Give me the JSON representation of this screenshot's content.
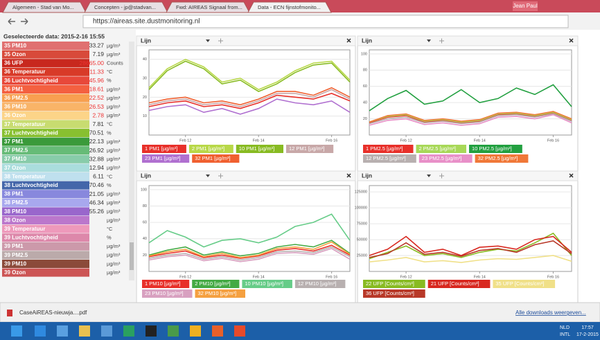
{
  "browser": {
    "tabs": [
      "Algemeen - Stad van Mo...",
      "Concepten - jp@stadvan...",
      "Fwd: AIREAS Signaal from...",
      "Data - ECN fijnstofmonito..."
    ],
    "user": "Jean Paul",
    "url": "https://aireas.site.dustmonitoring.nl"
  },
  "sidebar": {
    "header": "Geselecteerde data: 2015-2-16 15:55",
    "rows": [
      {
        "label": "35 PM10",
        "value": "33.27",
        "unit": "µg/m³",
        "color": "#e07070"
      },
      {
        "label": "35 Ozon",
        "value": "7.19",
        "unit": "µg/m³",
        "color": "#d84a3a"
      },
      {
        "label": "36 UFP",
        "value": "28665.00",
        "unit": "Counts",
        "color": "#c8281e"
      },
      {
        "label": "36 Temperatuur",
        "value": "11.33",
        "unit": "°C",
        "color": "#d83a28"
      },
      {
        "label": "36 Luchtvochtigheid",
        "value": "45.96",
        "unit": "%",
        "color": "#e8483a"
      },
      {
        "label": "36 PM1",
        "value": "18.61",
        "unit": "µg/m³",
        "color": "#f46040"
      },
      {
        "label": "36 PM2.5",
        "value": "22.52",
        "unit": "µg/m³",
        "color": "#f8a050"
      },
      {
        "label": "36 PM10",
        "value": "26.53",
        "unit": "µg/m³",
        "color": "#f9b468"
      },
      {
        "label": "36 Ozon",
        "value": "2.78",
        "unit": "µg/m³",
        "color": "#fcd488"
      },
      {
        "label": "37 Temperatuur",
        "value": "7.81",
        "unit": "°C",
        "color": "#c8dc70"
      },
      {
        "label": "37 Luchtvochtigheid",
        "value": "70.51",
        "unit": "%",
        "color": "#88c030"
      },
      {
        "label": "37 PM1",
        "value": "22.13",
        "unit": "µg/m³",
        "color": "#3a9a3a"
      },
      {
        "label": "37 PM2.5",
        "value": "26.92",
        "unit": "µg/m³",
        "color": "#66bb77"
      },
      {
        "label": "37 PM10",
        "value": "32.88",
        "unit": "µg/m³",
        "color": "#88ccaa"
      },
      {
        "label": "37 Ozon",
        "value": "12.94",
        "unit": "µg/m³",
        "color": "#aadddd"
      },
      {
        "label": "38 Temperatuur",
        "value": "6.11",
        "unit": "°C",
        "color": "#bfe0ee"
      },
      {
        "label": "38 Luchtvochtigheid",
        "value": "70.46",
        "unit": "%",
        "color": "#4466aa"
      },
      {
        "label": "38 PM1",
        "value": "21.05",
        "unit": "µg/m³",
        "color": "#8888dd"
      },
      {
        "label": "38 PM2.5",
        "value": "46.34",
        "unit": "µg/m³",
        "color": "#a8a8ee"
      },
      {
        "label": "38 PM10",
        "value": "55.26",
        "unit": "µg/m³",
        "color": "#9966cc"
      },
      {
        "label": "38 Ozon",
        "unit": "µg/m³",
        "color": "#bb77cc"
      },
      {
        "label": "39 Temperatuur",
        "unit": "°C",
        "color": "#ee99bb"
      },
      {
        "label": "39 Luchtvochtigheid",
        "unit": "%",
        "color": "#dd88aa"
      },
      {
        "label": "39 PM1",
        "unit": "µg/m³",
        "color": "#cc99aa"
      },
      {
        "label": "39 PM2.5",
        "unit": "µg/m³",
        "color": "#bbaaaa"
      },
      {
        "label": "39 PM10",
        "unit": "µg/m³",
        "color": "#8b4a3a"
      },
      {
        "label": "39 Ozon",
        "unit": "µg/m³",
        "color": "#cc5555"
      }
    ]
  },
  "panels": [
    {
      "header": "Lijn",
      "x": [
        0,
        1,
        2,
        3,
        4,
        5,
        6,
        7,
        8,
        9,
        10,
        11
      ],
      "xlim": [
        0,
        11
      ],
      "xticks": [
        {
          "value": 2,
          "label": "Feb 12"
        },
        {
          "value": 6,
          "label": "Feb 14"
        },
        {
          "value": 10,
          "label": "Feb 16"
        }
      ],
      "ylim": [
        0,
        45
      ],
      "yticks": [
        10,
        20,
        30,
        40
      ],
      "series": [
        {
          "name": "1 PM1 [µg/m³]",
          "color": "#e8302a",
          "values": [
            15,
            17,
            18,
            15,
            16,
            14,
            17,
            21,
            20,
            19,
            22,
            18
          ]
        },
        {
          "name": "2 PM1 [µg/m³]",
          "color": "#b8d848",
          "values": [
            25,
            35,
            40,
            36,
            28,
            30,
            24,
            28,
            34,
            38,
            39,
            29
          ]
        },
        {
          "name": "10 PM1 [µg/m³]",
          "color": "#88bb22",
          "values": [
            24,
            34,
            39,
            35,
            27,
            29,
            23,
            27,
            33,
            37,
            38,
            28
          ]
        },
        {
          "name": "12 PM1 [µg/m³]",
          "color": "#c8a8a8",
          "values": [
            16,
            18,
            19,
            16,
            17,
            15,
            18,
            22,
            22,
            20,
            24,
            19
          ]
        },
        {
          "name": "23 PM1 [µg/m³]",
          "color": "#b070d0",
          "values": [
            13,
            15,
            16,
            12,
            14,
            11,
            14,
            19,
            17,
            16,
            18,
            12
          ]
        },
        {
          "name": "32 PM1 [µg/m³]",
          "color": "#f06030",
          "values": [
            17,
            19,
            20,
            17,
            18,
            16,
            19,
            23,
            23,
            21,
            25,
            20
          ]
        }
      ]
    },
    {
      "header": "Lijn",
      "x": [
        0,
        1,
        2,
        3,
        4,
        5,
        6,
        7,
        8,
        9,
        10,
        11
      ],
      "xlim": [
        0,
        11
      ],
      "xticks": [
        {
          "value": 2,
          "label": "Feb 12"
        },
        {
          "value": 6,
          "label": "Feb 14"
        },
        {
          "value": 10,
          "label": "Feb 16"
        }
      ],
      "ylim": [
        0,
        105
      ],
      "yticks": [
        20,
        40,
        60,
        80,
        100
      ],
      "series": [
        {
          "name": "1 PM2.5 [µg/m³]",
          "color": "#e8302a",
          "values": [
            15,
            22,
            24,
            16,
            18,
            15,
            17,
            25,
            26,
            23,
            27,
            18
          ]
        },
        {
          "name": "2 PM2.5 [µg/m³]",
          "color": "#a8d858",
          "values": [
            16,
            23,
            25,
            17,
            19,
            16,
            18,
            26,
            27,
            24,
            28,
            19
          ]
        },
        {
          "name": "10 PM2.5 [µg/m³]",
          "color": "#22a040",
          "values": [
            30,
            45,
            55,
            38,
            42,
            56,
            40,
            45,
            58,
            50,
            62,
            35
          ]
        },
        {
          "name": "12 PM2.5 [µg/m³]",
          "color": "#b8b0b0",
          "values": [
            14,
            20,
            22,
            15,
            17,
            14,
            16,
            24,
            25,
            22,
            26,
            17
          ]
        },
        {
          "name": "23 PM2.5 [µg/m³]",
          "color": "#e890c8",
          "values": [
            12,
            18,
            20,
            13,
            15,
            12,
            14,
            22,
            23,
            20,
            25,
            15
          ]
        },
        {
          "name": "32 PM2.5 [µg/m³]",
          "color": "#f07838",
          "values": [
            16,
            24,
            26,
            18,
            20,
            17,
            19,
            27,
            28,
            25,
            29,
            20
          ]
        }
      ]
    },
    {
      "header": "Lijn",
      "x": [
        0,
        1,
        2,
        3,
        4,
        5,
        6,
        7,
        8,
        9,
        10,
        11
      ],
      "xlim": [
        0,
        11
      ],
      "xticks": [
        {
          "value": 2,
          "label": "Feb 12"
        },
        {
          "value": 6,
          "label": "Feb 14"
        },
        {
          "value": 10,
          "label": "Feb 16"
        }
      ],
      "ylim": [
        0,
        105
      ],
      "yticks": [
        20,
        40,
        60,
        80,
        100
      ],
      "series": [
        {
          "name": "1 PM10 [µg/m³]",
          "color": "#e8302a",
          "values": [
            18,
            22,
            25,
            17,
            20,
            16,
            19,
            26,
            28,
            25,
            32,
            20
          ]
        },
        {
          "name": "2 PM10 [µg/m³]",
          "color": "#44aa44",
          "values": [
            20,
            26,
            30,
            20,
            24,
            19,
            22,
            30,
            33,
            30,
            38,
            22
          ]
        },
        {
          "name": "10 PM10 [µg/m³]",
          "color": "#66cc88",
          "values": [
            35,
            50,
            42,
            30,
            38,
            40,
            35,
            42,
            55,
            60,
            70,
            38
          ]
        },
        {
          "name": "12 PM10 [µg/m³]",
          "color": "#b8b0b0",
          "values": [
            16,
            20,
            22,
            15,
            18,
            14,
            17,
            24,
            25,
            23,
            30,
            18
          ]
        },
        {
          "name": "23 PM10 [µg/m³]",
          "color": "#d8a0c0",
          "values": [
            14,
            18,
            20,
            13,
            16,
            12,
            15,
            22,
            23,
            21,
            28,
            15
          ]
        },
        {
          "name": "32 PM10 [µg/m³]",
          "color": "#f5a040",
          "values": [
            19,
            24,
            27,
            18,
            22,
            17,
            20,
            28,
            30,
            27,
            36,
            21
          ]
        }
      ]
    },
    {
      "header": "Lijn",
      "x": [
        0,
        1,
        2,
        3,
        4,
        5,
        6,
        7,
        8,
        9,
        10,
        11
      ],
      "xlim": [
        0,
        11
      ],
      "xticks": [
        {
          "value": 2,
          "label": "Feb 12"
        },
        {
          "value": 6,
          "label": "Feb 14"
        },
        {
          "value": 10,
          "label": "Feb 16"
        }
      ],
      "ylim": [
        0,
        135000
      ],
      "yticks": [
        25000,
        50000,
        75000,
        100000,
        125000
      ],
      "series": [
        {
          "name": "22 UFP [Counts/cm³]",
          "color": "#88bb22",
          "values": [
            20000,
            30000,
            40000,
            25000,
            28000,
            22000,
            30000,
            35000,
            32000,
            45000,
            60000,
            25000
          ]
        },
        {
          "name": "21 UFP [Counts/cm³]",
          "color": "#d82820",
          "values": [
            25000,
            35000,
            55000,
            30000,
            35000,
            25000,
            38000,
            40000,
            35000,
            50000,
            55000,
            30000
          ]
        },
        {
          "name": "35 UFP [Counts/cm³]",
          "color": "#f0e088",
          "values": [
            15000,
            18000,
            22000,
            15000,
            17000,
            14000,
            18000,
            20000,
            19000,
            22000,
            25000,
            16000
          ]
        },
        {
          "name": "36 UFP [Counts/cm³]",
          "color": "#b83828",
          "values": [
            22000,
            28000,
            45000,
            27000,
            30000,
            24000,
            33000,
            36000,
            30000,
            42000,
            48000,
            28000
          ]
        }
      ]
    }
  ],
  "downloads": {
    "file": "CaseAiREAS-nieuwja....pdf",
    "all": "Alle downloads weergeven..."
  },
  "taskbar": {
    "lang": "NLD",
    "layout": "INTL",
    "time": "17:57",
    "date": "17-2-2015"
  }
}
